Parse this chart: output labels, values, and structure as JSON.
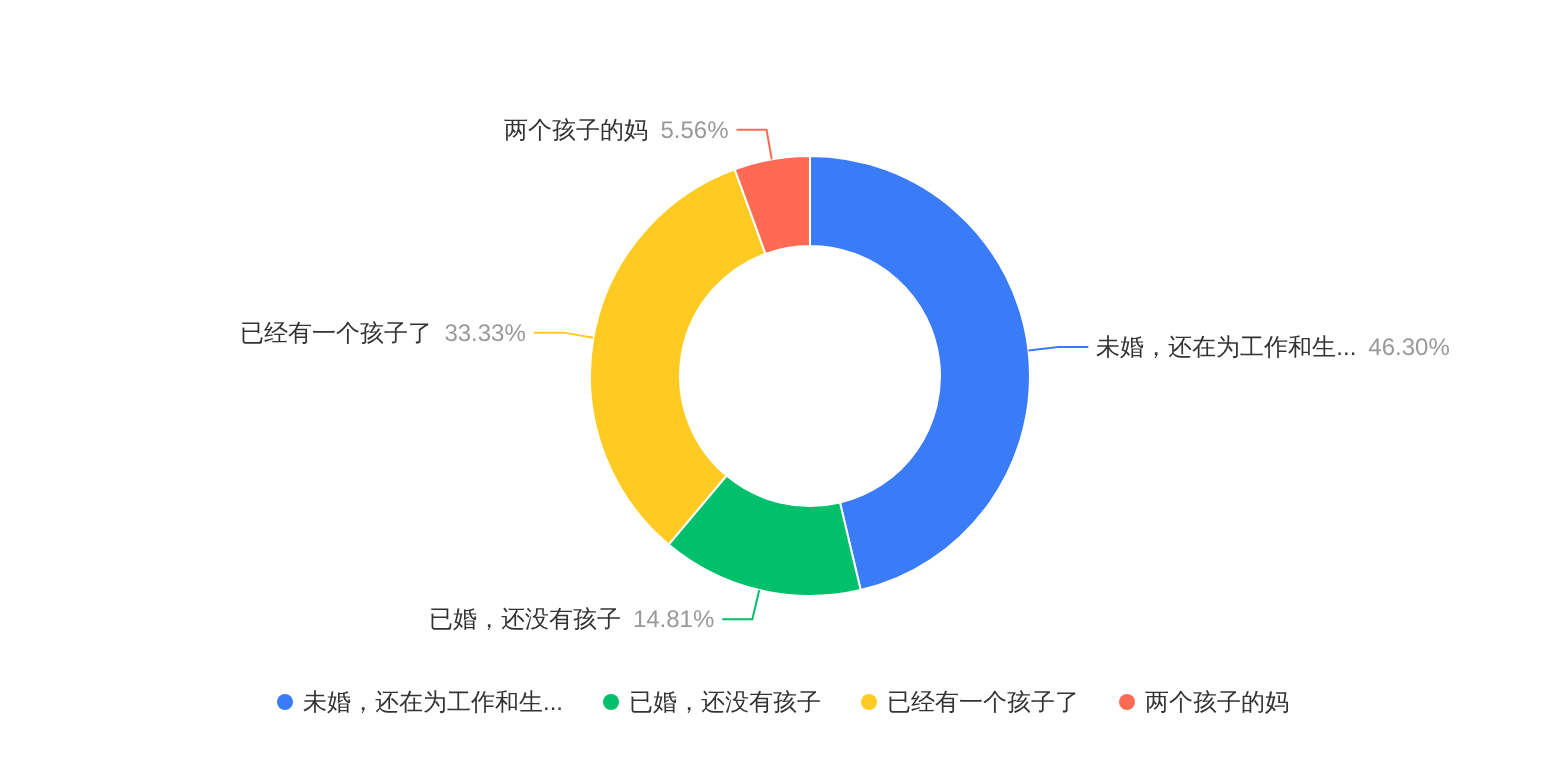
{
  "chart_data": {
    "type": "donut",
    "categories": [
      "未婚，还在为工作和生...",
      "已婚，还没有孩子",
      "已经有一个孩子了",
      "两个孩子的妈"
    ],
    "values": [
      46.3,
      14.81,
      33.33,
      5.56
    ],
    "value_labels": [
      "46.30%",
      "14.81%",
      "33.33%",
      "5.56%"
    ],
    "colors": [
      "#3a7cf7",
      "#00c06b",
      "#ffcb22",
      "#fe6a54"
    ],
    "legend": "bottom"
  }
}
